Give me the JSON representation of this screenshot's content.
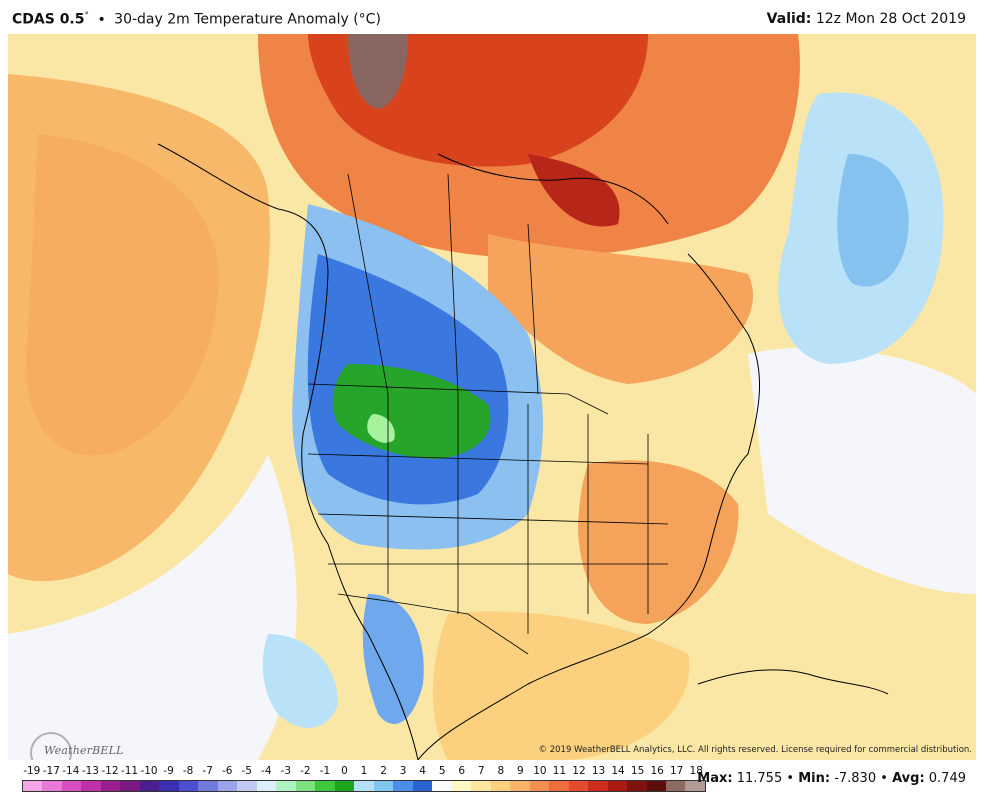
{
  "header": {
    "product": "CDAS 0.5",
    "degree": "°",
    "separator": "•",
    "title": "30-day 2m Temperature Anomaly (°C)",
    "valid_label": "Valid:",
    "valid_value": "12z Mon 28 Oct 2019"
  },
  "map": {
    "region": "North America",
    "logo_text": "WeatherBELL",
    "copyright": "© 2019 WeatherBELL Analytics, LLC. All rights reserved. License required for commercial distribution."
  },
  "colorbar": {
    "labels": [
      "-19",
      "-17",
      "-14",
      "-13",
      "-12",
      "-11",
      "-10",
      "-9",
      "-8",
      "-7",
      "-6",
      "-5",
      "-4",
      "-3",
      "-2",
      "-1",
      "0",
      "1",
      "2",
      "3",
      "4",
      "5",
      "6",
      "7",
      "8",
      "9",
      "10",
      "11",
      "12",
      "13",
      "14",
      "15",
      "16",
      "17",
      "18"
    ],
    "colors": [
      "#f4a6e8",
      "#e879d6",
      "#d94fc2",
      "#c030a8",
      "#9a1f8e",
      "#7a1b82",
      "#4a1f90",
      "#3a2fb0",
      "#4c4fd0",
      "#6f7bdb",
      "#9aa3e6",
      "#c1caf1",
      "#ddeffb",
      "#aef2c0",
      "#7fe07f",
      "#3cc73c",
      "#1ea51e",
      "#b6dffa",
      "#82c7f2",
      "#4a8ee8",
      "#2b63d3",
      "#f7fcf7",
      "#fff8c4",
      "#fde6a0",
      "#fbd07e",
      "#f8b466",
      "#f49152",
      "#ee6d3e",
      "#e24b2c",
      "#cc2c1c",
      "#a91a12",
      "#7e130d",
      "#5c0f0a",
      "#8d6b63",
      "#b39a92"
    ]
  },
  "stats": {
    "max_label": "Max:",
    "max_value": "11.755",
    "min_label": "Min:",
    "min_value": "-7.830",
    "avg_label": "Avg:",
    "avg_value": "0.749"
  }
}
